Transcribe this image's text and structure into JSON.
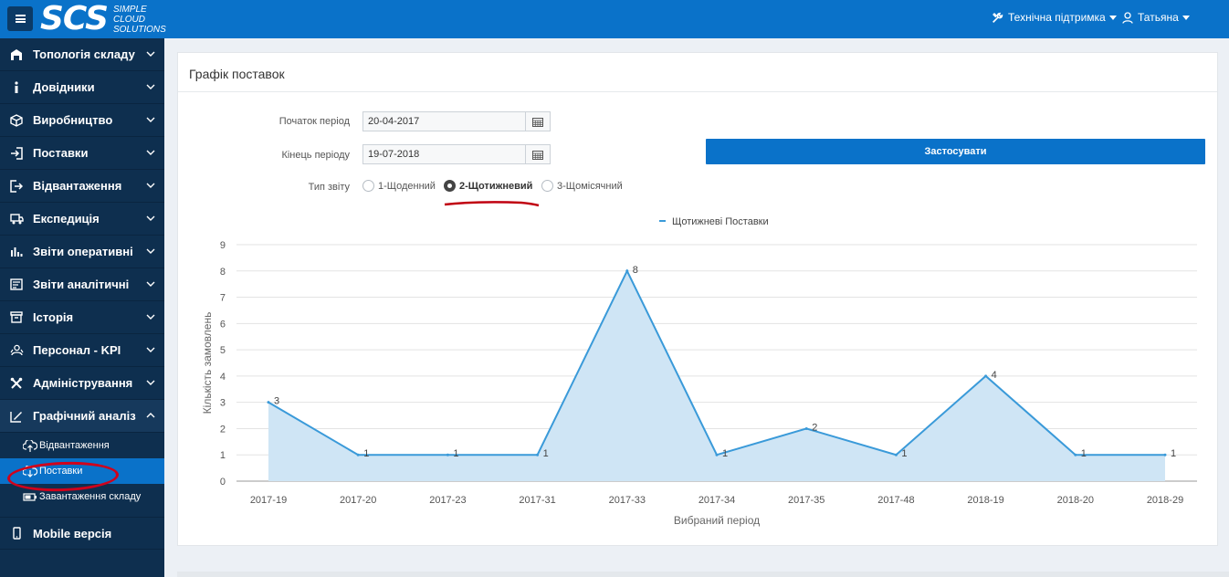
{
  "header": {
    "logo_main": "SCS",
    "logo_sub": [
      "SIMPLE",
      "CLOUD",
      "SOLUTIONS"
    ],
    "support_label": "Технічна підтримка",
    "user_label": "Татьяна",
    "color": "#0a72c9"
  },
  "sidebar": {
    "items": [
      {
        "label": "Топологія складу",
        "icon": "warehouse-icon"
      },
      {
        "label": "Довідники",
        "icon": "info-icon"
      },
      {
        "label": "Виробництво",
        "icon": "box-icon"
      },
      {
        "label": "Поставки",
        "icon": "sign-in-icon"
      },
      {
        "label": "Відвантаження",
        "icon": "sign-out-icon"
      },
      {
        "label": "Експедиція",
        "icon": "truck-icon"
      },
      {
        "label": "Звіти оперативні",
        "icon": "bar-chart-icon"
      },
      {
        "label": "Звіти аналітичні",
        "icon": "list-chart-icon"
      },
      {
        "label": "Історія",
        "icon": "archive-icon"
      },
      {
        "label": "Персонал - KPI",
        "icon": "people-icon"
      },
      {
        "label": "Адміністрування",
        "icon": "tools-icon"
      },
      {
        "label": "Графічний аналіз",
        "icon": "chart-edit-icon"
      }
    ],
    "subitems": [
      {
        "label": "Відвантаження",
        "icon": "cloud-upload-icon"
      },
      {
        "label": "Поставки",
        "icon": "cloud-download-icon",
        "active": true
      },
      {
        "label": "Завантаження складу",
        "icon": "battery-icon"
      }
    ],
    "mobile_label": "Mobile версія"
  },
  "panel": {
    "title": "Графік поставок",
    "start_label": "Початок період",
    "start_value": "20-04-2017",
    "end_label": "Кінець періоду",
    "end_value": "19-07-2018",
    "type_label": "Тип звіту",
    "radio_options": [
      "1-Щоденний",
      "2-Щотижневий",
      "3-Щомісячний"
    ],
    "selected_radio": "2-Щотижневий",
    "apply_label": "Застосувати"
  },
  "chart_data": {
    "type": "area",
    "categories": [
      "2017-19",
      "2017-20",
      "2017-23",
      "2017-31",
      "2017-33",
      "2017-34",
      "2017-35",
      "2017-48",
      "2018-19",
      "2018-20",
      "2018-29"
    ],
    "series": [
      {
        "name": "Щотижневі Поставки",
        "values": [
          3,
          1,
          1,
          1,
          8,
          1,
          2,
          1,
          4,
          1,
          1
        ],
        "color": "#3a9ad9"
      }
    ],
    "xlabel": "Вибраний період",
    "ylabel": "Кількість замовлень",
    "ylim": [
      0,
      9
    ],
    "yticks": [
      0,
      1,
      2,
      3,
      4,
      5,
      6,
      7,
      8,
      9
    ],
    "grid": true,
    "legend": "top-center",
    "data_labels": true
  }
}
